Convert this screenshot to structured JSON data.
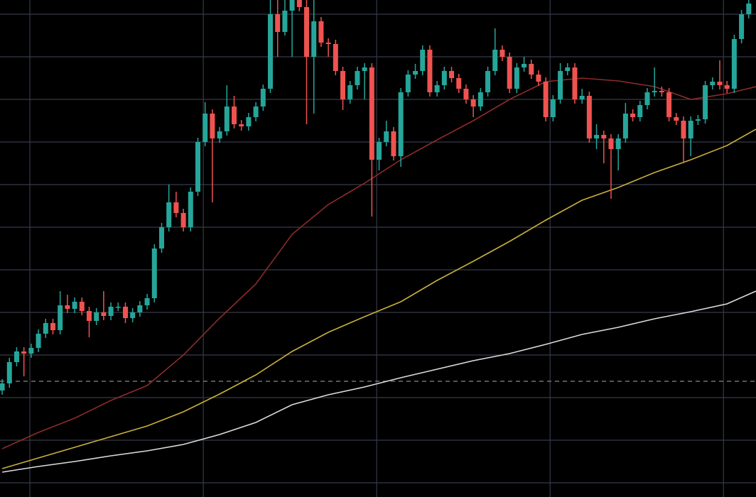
{
  "chart_data": {
    "type": "candlestick",
    "background": "#000000",
    "grid": true,
    "grid_color": "#363a4a",
    "up_color": "#26a69a",
    "down_color": "#ef5350",
    "xlim": [
      -0.3,
      104.0
    ],
    "ylim": [
      0,
      700
    ],
    "xticks": [
      3.82,
      27.75,
      51.67,
      75.59,
      99.51
    ],
    "yticks": [
      20,
      80,
      140,
      200,
      260,
      320,
      380,
      440,
      500,
      560,
      620,
      680
    ],
    "price_line": 163,
    "price_line_color": "#8a8a8a",
    "open": [
      150,
      160,
      190,
      205,
      202,
      210,
      230,
      245,
      235,
      270,
      265,
      275,
      262,
      248,
      260,
      255,
      268,
      268,
      252,
      260,
      270,
      280,
      350,
      380,
      415,
      400,
      380,
      430,
      500,
      540,
      505,
      515,
      550,
      525,
      522,
      535,
      550,
      575,
      680,
      655,
      685,
      700,
      690,
      620,
      670,
      640,
      638,
      600,
      560,
      580,
      600,
      605,
      475,
      500,
      515,
      480,
      570,
      595,
      600,
      630,
      570,
      580,
      600,
      590,
      575,
      560,
      550,
      570,
      600,
      630,
      620,
      575,
      605,
      610,
      595,
      585,
      535,
      560,
      600,
      605,
      560,
      565,
      505,
      510,
      505,
      490,
      505,
      540,
      535,
      552,
      570,
      572,
      570,
      535,
      530,
      505,
      530,
      532,
      580,
      585,
      580,
      575,
      645,
      680
    ],
    "high": [
      166,
      196,
      211,
      211,
      216,
      236,
      251,
      251,
      290,
      285,
      281,
      281,
      268,
      266,
      290,
      274,
      274,
      274,
      266,
      276,
      286,
      356,
      386,
      440,
      430,
      406,
      436,
      506,
      556,
      546,
      521,
      580,
      565,
      531,
      541,
      556,
      581,
      700,
      700,
      700,
      700,
      700,
      700,
      700,
      676,
      646,
      644,
      606,
      586,
      606,
      611,
      611,
      506,
      530,
      521,
      576,
      601,
      610,
      636,
      636,
      586,
      606,
      606,
      596,
      581,
      566,
      576,
      606,
      660,
      636,
      626,
      611,
      620,
      616,
      601,
      591,
      566,
      611,
      611,
      611,
      575,
      571,
      525,
      516,
      511,
      511,
      555,
      546,
      558,
      576,
      605,
      578,
      576,
      541,
      536,
      536,
      538,
      586,
      591,
      615,
      586,
      651,
      686,
      700
    ],
    "low": [
      144,
      154,
      184,
      170,
      196,
      204,
      224,
      229,
      229,
      259,
      259,
      256,
      225,
      242,
      249,
      249,
      262,
      245,
      246,
      254,
      264,
      274,
      344,
      374,
      394,
      374,
      374,
      424,
      494,
      415,
      499,
      509,
      519,
      516,
      516,
      529,
      544,
      569,
      620,
      650,
      620,
      684,
      525,
      540,
      634,
      620,
      594,
      545,
      554,
      574,
      560,
      395,
      460,
      494,
      474,
      465,
      564,
      589,
      594,
      564,
      564,
      574,
      584,
      569,
      554,
      535,
      544,
      564,
      594,
      614,
      569,
      569,
      599,
      589,
      579,
      529,
      529,
      554,
      594,
      554,
      554,
      499,
      490,
      470,
      420,
      460,
      499,
      529,
      529,
      546,
      564,
      564,
      529,
      524,
      470,
      480,
      524,
      526,
      574,
      574,
      569,
      569,
      639,
      674
    ],
    "close": [
      160,
      190,
      205,
      202,
      210,
      230,
      245,
      235,
      270,
      265,
      275,
      262,
      248,
      260,
      255,
      268,
      268,
      252,
      260,
      270,
      280,
      350,
      380,
      415,
      400,
      380,
      430,
      500,
      540,
      505,
      515,
      550,
      525,
      522,
      535,
      550,
      575,
      680,
      655,
      685,
      700,
      690,
      620,
      670,
      640,
      638,
      600,
      560,
      580,
      600,
      605,
      475,
      500,
      515,
      480,
      570,
      595,
      600,
      630,
      570,
      580,
      600,
      590,
      575,
      560,
      550,
      570,
      600,
      630,
      620,
      575,
      605,
      610,
      595,
      585,
      535,
      560,
      600,
      605,
      560,
      565,
      505,
      510,
      505,
      490,
      505,
      540,
      535,
      552,
      570,
      572,
      570,
      535,
      530,
      505,
      530,
      532,
      580,
      585,
      580,
      575,
      645,
      680,
      695
    ],
    "lines": [
      {
        "color": "#8e2a2a",
        "x": [
          0,
          5,
          10,
          15,
          20,
          25,
          30,
          35,
          40,
          45,
          50,
          55,
          60,
          65,
          70,
          75,
          80,
          85,
          90,
          95,
          100,
          104
        ],
        "values": [
          68,
          91,
          111,
          136,
          157,
          200,
          252,
          300,
          370,
          412,
          442,
          475,
          503,
          530,
          560,
          585,
          590,
          586,
          578,
          560,
          568,
          578
        ]
      },
      {
        "color": "#c9b03c",
        "x": [
          0,
          5,
          10,
          15,
          20,
          25,
          30,
          35,
          40,
          45,
          50,
          55,
          60,
          65,
          70,
          75,
          80,
          85,
          90,
          95,
          100,
          104
        ],
        "values": [
          40,
          55,
          70,
          85,
          100,
          120,
          145,
          172,
          205,
          232,
          254,
          275,
          305,
          332,
          360,
          390,
          418,
          436,
          457,
          475,
          495,
          518
        ]
      },
      {
        "color": "#dcdcdc",
        "x": [
          0,
          5,
          10,
          15,
          20,
          25,
          30,
          35,
          40,
          45,
          50,
          55,
          60,
          65,
          70,
          75,
          80,
          85,
          90,
          95,
          100,
          104
        ],
        "values": [
          35,
          43,
          50,
          58,
          65,
          74,
          88,
          105,
          130,
          144,
          155,
          168,
          180,
          192,
          202,
          215,
          229,
          239,
          251,
          261,
          272,
          290
        ]
      }
    ]
  }
}
